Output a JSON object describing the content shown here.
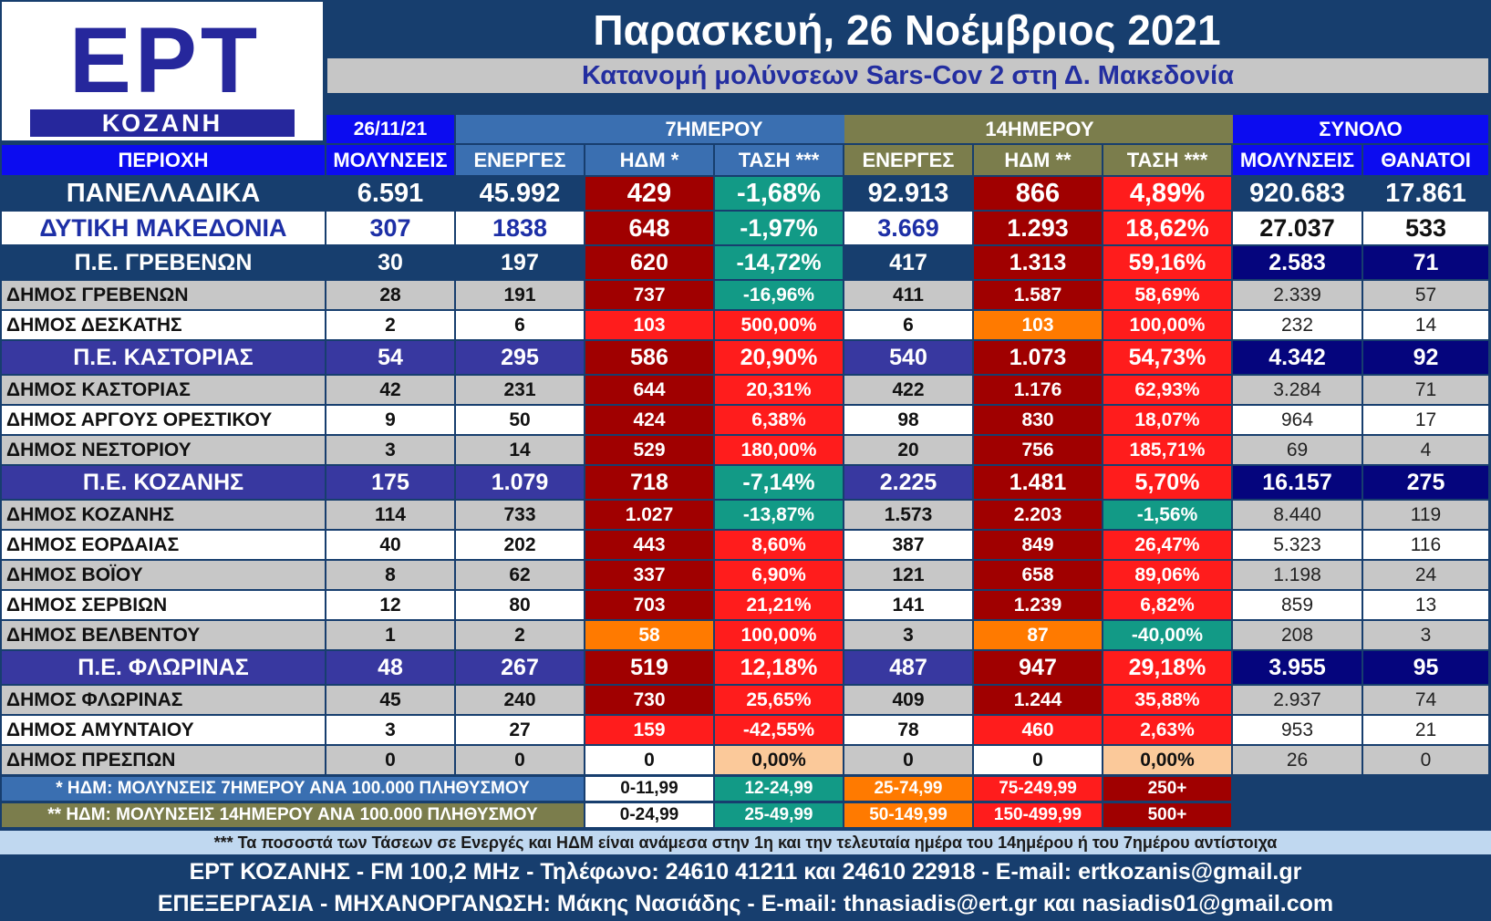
{
  "logo": {
    "mark": "ΕΡΤ",
    "station": "ΚΟΖΑΝΗ"
  },
  "header": {
    "title": "Παρασκευή, 26 Νοέμβριος 2021",
    "subtitle": "Κατανομή μολύνσεων Sars-Cov 2 στη Δ. Μακεδονία"
  },
  "group_headers": {
    "date": "26/11/21",
    "week": "7ΗΜΕΡΟΥ",
    "fortnight": "14ΗΜΕΡΟΥ",
    "total": "ΣΥΝΟΛΟ"
  },
  "columns": [
    "ΠΕΡΙΟΧΗ",
    "ΜΟΛΥΝΣΕΙΣ",
    "ΕΝΕΡΓΕΣ",
    "ΗΔΜ *",
    "ΤΑΣΗ ***",
    "ΕΝΕΡΓΕΣ",
    "ΗΔΜ **",
    "ΤΑΣΗ ***",
    "ΜΟΛΥΝΣΕΙΣ",
    "ΘΑΝΑΤΟΙ"
  ],
  "colors": {
    "navy": "#173e6e",
    "blue_header": "#0c0cf0",
    "week_header": "#3a6fb1",
    "fortnight_header": "#7b7d4c",
    "purple_row": "#3838a0",
    "dark_blue_total": "#05057d",
    "gray_row": "#c7c7c7",
    "dark_red": "#a00000",
    "red": "#ff1c1c",
    "orange": "#ff7a00",
    "peach": "#fbc99a",
    "green": "#129a86",
    "white": "#ffffff"
  },
  "rows": [
    {
      "type": "national",
      "name": "ΠΑΝΕΛΛΑΔΙΚΑ",
      "cases": "6.591",
      "active7": "45.992",
      "idm7": "429",
      "trend7": "-1,68%",
      "active14": "92.913",
      "idm14": "866",
      "trend14": "4,89%",
      "total": "920.683",
      "deaths": "17.861",
      "c7": "dark_red",
      "ct7": "green",
      "c14": "dark_red",
      "ct14": "red"
    },
    {
      "type": "region",
      "name": "ΔΥΤΙΚΗ ΜΑΚΕΔΟΝΙΑ",
      "cases": "307",
      "active7": "1838",
      "idm7": "648",
      "trend7": "-1,97%",
      "active14": "3.669",
      "idm14": "1.293",
      "trend14": "18,62%",
      "total": "27.037",
      "deaths": "533",
      "c7": "dark_red",
      "ct7": "green",
      "c14": "dark_red",
      "ct14": "red"
    },
    {
      "type": "prefecture-navy",
      "name": "Π.Ε. ΓΡΕΒΕΝΩΝ",
      "cases": "30",
      "active7": "197",
      "idm7": "620",
      "trend7": "-14,72%",
      "active14": "417",
      "idm14": "1.313",
      "trend14": "59,16%",
      "total": "2.583",
      "deaths": "71",
      "c7": "dark_red",
      "ct7": "green",
      "c14": "dark_red",
      "ct14": "red"
    },
    {
      "type": "muni-gray",
      "name": "ΔΗΜΟΣ ΓΡΕΒΕΝΩΝ",
      "cases": "28",
      "active7": "191",
      "idm7": "737",
      "trend7": "-16,96%",
      "active14": "411",
      "idm14": "1.587",
      "trend14": "58,69%",
      "total": "2.339",
      "deaths": "57",
      "c7": "dark_red",
      "ct7": "green",
      "c14": "dark_red",
      "ct14": "red"
    },
    {
      "type": "muni-white",
      "name": "ΔΗΜΟΣ ΔΕΣΚΑΤΗΣ",
      "cases": "2",
      "active7": "6",
      "idm7": "103",
      "trend7": "500,00%",
      "active14": "6",
      "idm14": "103",
      "trend14": "100,00%",
      "total": "232",
      "deaths": "14",
      "c7": "red",
      "ct7": "red",
      "c14": "orange",
      "ct14": "red"
    },
    {
      "type": "prefecture-purple",
      "name": "Π.Ε. ΚΑΣΤΟΡΙΑΣ",
      "cases": "54",
      "active7": "295",
      "idm7": "586",
      "trend7": "20,90%",
      "active14": "540",
      "idm14": "1.073",
      "trend14": "54,73%",
      "total": "4.342",
      "deaths": "92",
      "c7": "dark_red",
      "ct7": "red",
      "c14": "dark_red",
      "ct14": "red"
    },
    {
      "type": "muni-gray",
      "name": "ΔΗΜΟΣ ΚΑΣΤΟΡΙΑΣ",
      "cases": "42",
      "active7": "231",
      "idm7": "644",
      "trend7": "20,31%",
      "active14": "422",
      "idm14": "1.176",
      "trend14": "62,93%",
      "total": "3.284",
      "deaths": "71",
      "c7": "dark_red",
      "ct7": "red",
      "c14": "dark_red",
      "ct14": "red"
    },
    {
      "type": "muni-white",
      "name": "ΔΗΜΟΣ ΑΡΓΟΥΣ ΟΡΕΣΤΙΚΟΥ",
      "cases": "9",
      "active7": "50",
      "idm7": "424",
      "trend7": "6,38%",
      "active14": "98",
      "idm14": "830",
      "trend14": "18,07%",
      "total": "964",
      "deaths": "17",
      "c7": "dark_red",
      "ct7": "red",
      "c14": "dark_red",
      "ct14": "red"
    },
    {
      "type": "muni-gray",
      "name": "ΔΗΜΟΣ ΝΕΣΤΟΡΙΟΥ",
      "cases": "3",
      "active7": "14",
      "idm7": "529",
      "trend7": "180,00%",
      "active14": "20",
      "idm14": "756",
      "trend14": "185,71%",
      "total": "69",
      "deaths": "4",
      "c7": "dark_red",
      "ct7": "red",
      "c14": "dark_red",
      "ct14": "red"
    },
    {
      "type": "prefecture-purple",
      "name": "Π.Ε. ΚΟΖΑΝΗΣ",
      "cases": "175",
      "active7": "1.079",
      "idm7": "718",
      "trend7": "-7,14%",
      "active14": "2.225",
      "idm14": "1.481",
      "trend14": "5,70%",
      "total": "16.157",
      "deaths": "275",
      "c7": "dark_red",
      "ct7": "green",
      "c14": "dark_red",
      "ct14": "red"
    },
    {
      "type": "muni-gray",
      "name": "ΔΗΜΟΣ ΚΟΖΑΝΗΣ",
      "cases": "114",
      "active7": "733",
      "idm7": "1.027",
      "trend7": "-13,87%",
      "active14": "1.573",
      "idm14": "2.203",
      "trend14": "-1,56%",
      "total": "8.440",
      "deaths": "119",
      "c7": "dark_red",
      "ct7": "green",
      "c14": "dark_red",
      "ct14": "green"
    },
    {
      "type": "muni-white",
      "name": "ΔΗΜΟΣ ΕΟΡΔΑΙΑΣ",
      "cases": "40",
      "active7": "202",
      "idm7": "443",
      "trend7": "8,60%",
      "active14": "387",
      "idm14": "849",
      "trend14": "26,47%",
      "total": "5.323",
      "deaths": "116",
      "c7": "dark_red",
      "ct7": "red",
      "c14": "dark_red",
      "ct14": "red"
    },
    {
      "type": "muni-gray",
      "name": "ΔΗΜΟΣ ΒΟΪΟΥ",
      "cases": "8",
      "active7": "62",
      "idm7": "337",
      "trend7": "6,90%",
      "active14": "121",
      "idm14": "658",
      "trend14": "89,06%",
      "total": "1.198",
      "deaths": "24",
      "c7": "dark_red",
      "ct7": "red",
      "c14": "dark_red",
      "ct14": "red"
    },
    {
      "type": "muni-white",
      "name": "ΔΗΜΟΣ ΣΕΡΒΙΩΝ",
      "cases": "12",
      "active7": "80",
      "idm7": "703",
      "trend7": "21,21%",
      "active14": "141",
      "idm14": "1.239",
      "trend14": "6,82%",
      "total": "859",
      "deaths": "13",
      "c7": "dark_red",
      "ct7": "red",
      "c14": "dark_red",
      "ct14": "red"
    },
    {
      "type": "muni-gray",
      "name": "ΔΗΜΟΣ ΒΕΛΒΕΝΤΟΥ",
      "cases": "1",
      "active7": "2",
      "idm7": "58",
      "trend7": "100,00%",
      "active14": "3",
      "idm14": "87",
      "trend14": "-40,00%",
      "total": "208",
      "deaths": "3",
      "c7": "orange",
      "ct7": "red",
      "c14": "orange",
      "ct14": "green"
    },
    {
      "type": "prefecture-purple",
      "name": "Π.Ε. ΦΛΩΡΙΝΑΣ",
      "cases": "48",
      "active7": "267",
      "idm7": "519",
      "trend7": "12,18%",
      "active14": "487",
      "idm14": "947",
      "trend14": "29,18%",
      "total": "3.955",
      "deaths": "95",
      "c7": "dark_red",
      "ct7": "red",
      "c14": "dark_red",
      "ct14": "red"
    },
    {
      "type": "muni-gray",
      "name": "ΔΗΜΟΣ ΦΛΩΡΙΝΑΣ",
      "cases": "45",
      "active7": "240",
      "idm7": "730",
      "trend7": "25,65%",
      "active14": "409",
      "idm14": "1.244",
      "trend14": "35,88%",
      "total": "2.937",
      "deaths": "74",
      "c7": "dark_red",
      "ct7": "red",
      "c14": "dark_red",
      "ct14": "red"
    },
    {
      "type": "muni-white",
      "name": "ΔΗΜΟΣ ΑΜΥΝΤΑΙΟΥ",
      "cases": "3",
      "active7": "27",
      "idm7": "159",
      "trend7": "-42,55%",
      "active14": "78",
      "idm14": "460",
      "trend14": "2,63%",
      "total": "953",
      "deaths": "21",
      "c7": "red",
      "ct7": "red",
      "c14": "red",
      "ct14": "red"
    },
    {
      "type": "muni-gray",
      "name": "ΔΗΜΟΣ ΠΡΕΣΠΩΝ",
      "cases": "0",
      "active7": "0",
      "idm7": "0",
      "trend7": "0,00%",
      "active14": "0",
      "idm14": "0",
      "trend14": "0,00%",
      "total": "26",
      "deaths": "0",
      "c7": "white",
      "ct7": "peach",
      "c14": "white",
      "ct14": "peach"
    }
  ],
  "legend": {
    "row1": {
      "label": "* ΗΔΜ: ΜΟΛΥΝΣΕΙΣ 7ΗΜΕΡΟΥ ΑΝΑ 100.000 ΠΛΗΘΥΣΜΟΥ",
      "ranges": [
        "0-11,99",
        "12-24,99",
        "25-74,99",
        "75-249,99",
        "250+"
      ]
    },
    "row2": {
      "label": "** ΗΔΜ: ΜΟΛΥΝΣΕΙΣ 14ΗΜΕΡΟΥ ΑΝΑ 100.000 ΠΛΗΘΥΣΜΟΥ",
      "ranges": [
        "0-24,99",
        "25-49,99",
        "50-149,99",
        "150-499,99",
        "500+"
      ]
    },
    "range_colors": [
      "white",
      "green",
      "orange",
      "red",
      "dark_red"
    ]
  },
  "footer": {
    "note": "*** Τα ποσοστά των Τάσεων σε Ενεργές και ΗΔΜ είναι ανάμεσα στην 1η και την τελευταία ημέρα του 14ημέρου ή του 7ημέρου αντίστοιχα",
    "contact": "ΕΡΤ ΚΟΖΑΝΗΣ - FM 100,2 MHz - Τηλέφωνο:  24610 41211 και 24610 22918 - E-mail: ertkozanis@gmail.gr",
    "credits": "ΕΠΕΞΕΡΓΑΣΙΑ  -  ΜΗΧΑΝΟΡΓΑΝΩΣΗ: Μάκης Νασιάδης  -   E-mail: thnasiadis@ert.gr και nasiadis01@gmail.com"
  }
}
